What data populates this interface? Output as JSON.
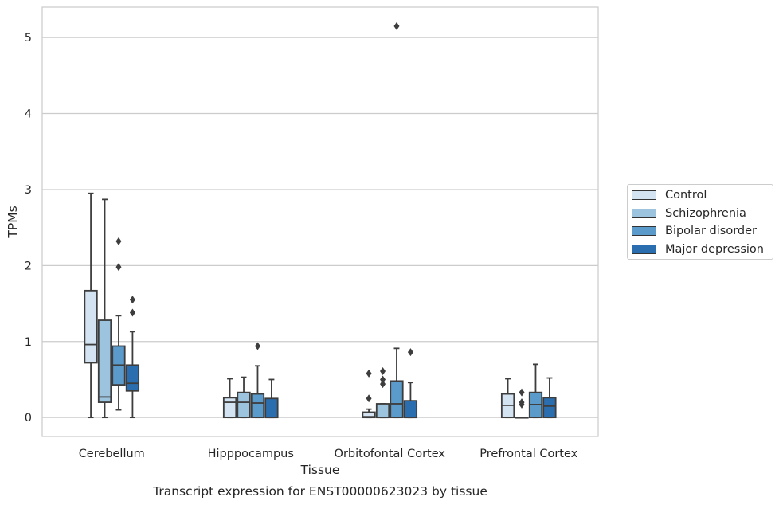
{
  "chart_data": {
    "type": "boxplot",
    "title": "Transcript expression for ENST00000623023 by tissue",
    "xlabel": "Tissue",
    "ylabel": "TPMs",
    "ylim": [
      -0.25,
      5.4
    ],
    "yticks": [
      0,
      1,
      2,
      3,
      4,
      5
    ],
    "grid": "horizontal",
    "legend_position": "right",
    "categories": [
      "Cerebellum",
      "Hipppocampus",
      "Orbitofontal Cortex",
      "Prefrontal Cortex"
    ],
    "series": [
      {
        "name": "Control",
        "color": "#d4e3f1",
        "boxes": [
          {
            "whislo": 0.0,
            "q1": 0.72,
            "med": 0.96,
            "q3": 1.67,
            "whishi": 2.95,
            "fliers": []
          },
          {
            "whislo": 0.0,
            "q1": 0.0,
            "med": 0.2,
            "q3": 0.26,
            "whishi": 0.51,
            "fliers": []
          },
          {
            "whislo": 0.0,
            "q1": 0.0,
            "med": 0.01,
            "q3": 0.07,
            "whishi": 0.11,
            "fliers": [
              0.25,
              0.58
            ]
          },
          {
            "whislo": 0.0,
            "q1": 0.0,
            "med": 0.16,
            "q3": 0.31,
            "whishi": 0.51,
            "fliers": []
          }
        ]
      },
      {
        "name": "Schizophrenia",
        "color": "#9cc4de",
        "boxes": [
          {
            "whislo": 0.0,
            "q1": 0.2,
            "med": 0.27,
            "q3": 1.28,
            "whishi": 2.87,
            "fliers": []
          },
          {
            "whislo": 0.0,
            "q1": 0.0,
            "med": 0.2,
            "q3": 0.33,
            "whishi": 0.53,
            "fliers": []
          },
          {
            "whislo": 0.0,
            "q1": 0.0,
            "med": 0.0,
            "q3": 0.18,
            "whishi": 0.18,
            "fliers": [
              0.44,
              0.5,
              0.61
            ]
          },
          {
            "whislo": 0.0,
            "q1": 0.0,
            "med": 0.0,
            "q3": 0.0,
            "whishi": 0.0,
            "fliers": [
              0.17,
              0.2,
              0.33
            ]
          }
        ]
      },
      {
        "name": "Bipolar disorder",
        "color": "#5a9bcb",
        "boxes": [
          {
            "whislo": 0.1,
            "q1": 0.43,
            "med": 0.69,
            "q3": 0.94,
            "whishi": 1.34,
            "fliers": [
              1.98,
              2.32
            ]
          },
          {
            "whislo": 0.0,
            "q1": 0.0,
            "med": 0.19,
            "q3": 0.31,
            "whishi": 0.68,
            "fliers": [
              0.94
            ]
          },
          {
            "whislo": 0.0,
            "q1": 0.0,
            "med": 0.18,
            "q3": 0.48,
            "whishi": 0.91,
            "fliers": [
              5.15
            ]
          },
          {
            "whislo": 0.0,
            "q1": 0.0,
            "med": 0.17,
            "q3": 0.33,
            "whishi": 0.7,
            "fliers": []
          }
        ]
      },
      {
        "name": "Major depression",
        "color": "#2a6eaf",
        "boxes": [
          {
            "whislo": 0.0,
            "q1": 0.35,
            "med": 0.45,
            "q3": 0.69,
            "whishi": 1.13,
            "fliers": [
              1.38,
              1.55
            ]
          },
          {
            "whislo": 0.0,
            "q1": 0.0,
            "med": 0.0,
            "q3": 0.25,
            "whishi": 0.5,
            "fliers": []
          },
          {
            "whislo": 0.0,
            "q1": 0.0,
            "med": 0.0,
            "q3": 0.22,
            "whishi": 0.46,
            "fliers": [
              0.86
            ]
          },
          {
            "whislo": 0.0,
            "q1": 0.0,
            "med": 0.15,
            "q3": 0.26,
            "whishi": 0.52,
            "fliers": []
          }
        ]
      }
    ]
  }
}
